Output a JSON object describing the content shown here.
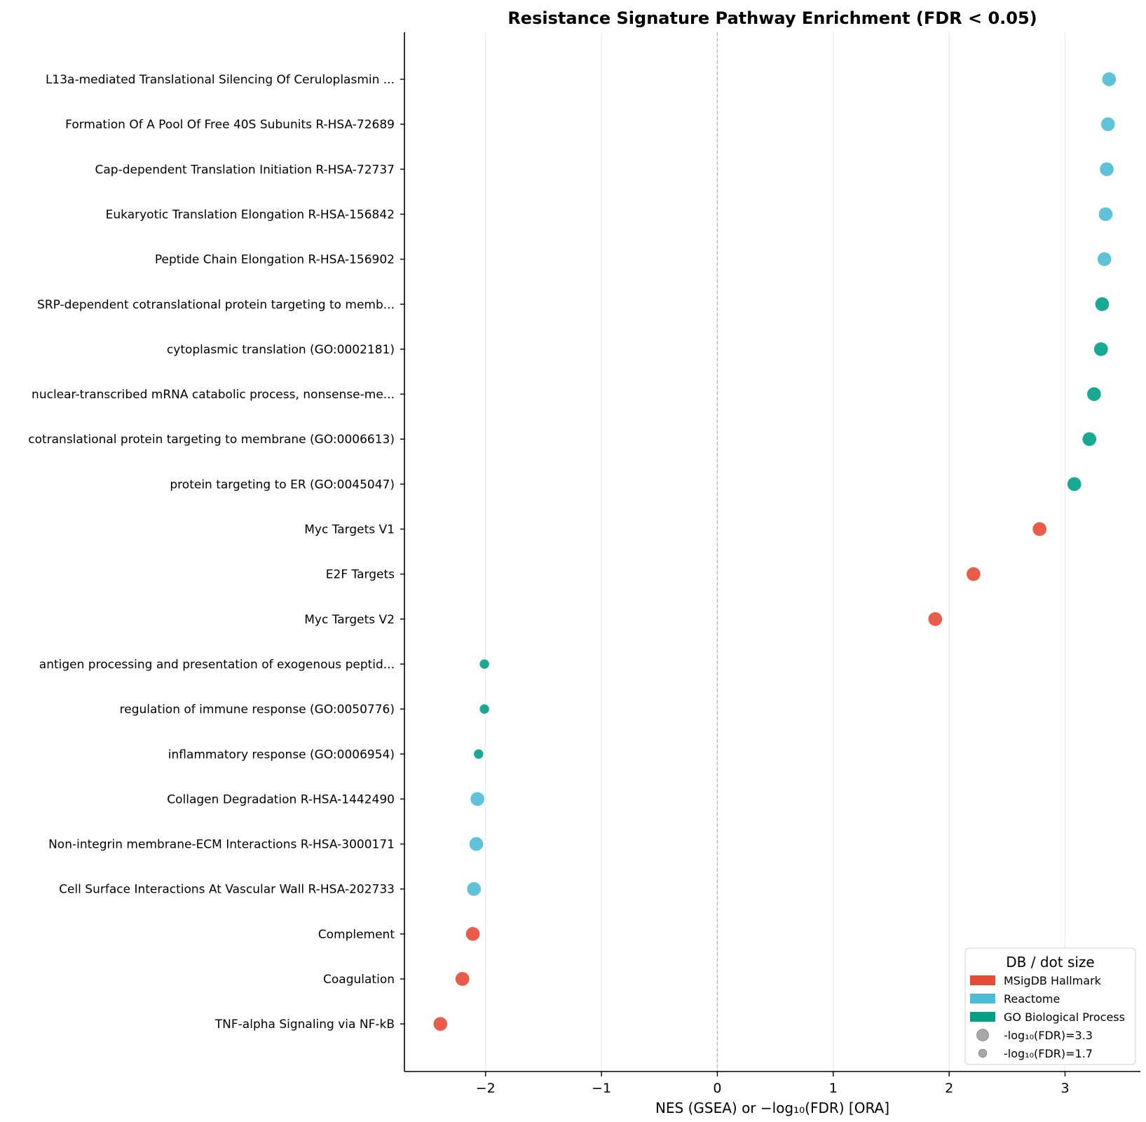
{
  "chart_data": {
    "type": "scatter",
    "title": "Resistance Signature Pathway Enrichment (FDR < 0.05)",
    "xlabel": "NES (GSEA) or −log₁₀(FDR) [ORA]",
    "ylabel": "",
    "xlim": [
      -2.7,
      3.65
    ],
    "xticks": [
      -2,
      -1,
      0,
      1,
      2,
      3
    ],
    "xtick_labels": [
      "−2",
      "−1",
      "0",
      "1",
      "2",
      "3"
    ],
    "grid": "x-only",
    "reference_line_x": 0,
    "colors": {
      "MSigDB Hallmark": "#e64b35",
      "Reactome": "#4dbbd5",
      "GO Biological Process": "#00a087"
    },
    "points": [
      {
        "label": "L13a-mediated Translational Silencing Of Ceruloplasmin ...",
        "x": 3.38,
        "db": "Reactome",
        "size": 3.3
      },
      {
        "label": "Formation Of A Pool Of Free 40S Subunits R-HSA-72689",
        "x": 3.37,
        "db": "Reactome",
        "size": 3.3
      },
      {
        "label": "Cap-dependent Translation Initiation R-HSA-72737",
        "x": 3.36,
        "db": "Reactome",
        "size": 3.3
      },
      {
        "label": "Eukaryotic Translation Elongation R-HSA-156842",
        "x": 3.35,
        "db": "Reactome",
        "size": 3.3
      },
      {
        "label": "Peptide Chain Elongation R-HSA-156902",
        "x": 3.34,
        "db": "Reactome",
        "size": 3.3
      },
      {
        "label": "SRP-dependent cotranslational protein targeting to memb...",
        "x": 3.32,
        "db": "GO Biological Process",
        "size": 3.3
      },
      {
        "label": "cytoplasmic translation (GO:0002181)",
        "x": 3.31,
        "db": "GO Biological Process",
        "size": 3.3
      },
      {
        "label": "nuclear-transcribed mRNA catabolic process, nonsense-me...",
        "x": 3.25,
        "db": "GO Biological Process",
        "size": 3.3
      },
      {
        "label": "cotranslational protein targeting to membrane (GO:0006613)",
        "x": 3.21,
        "db": "GO Biological Process",
        "size": 3.3
      },
      {
        "label": "protein targeting to ER (GO:0045047)",
        "x": 3.08,
        "db": "GO Biological Process",
        "size": 3.3
      },
      {
        "label": "Myc Targets V1",
        "x": 2.78,
        "db": "MSigDB Hallmark",
        "size": 3.3
      },
      {
        "label": "E2F Targets",
        "x": 2.21,
        "db": "MSigDB Hallmark",
        "size": 3.3
      },
      {
        "label": "Myc Targets V2",
        "x": 1.88,
        "db": "MSigDB Hallmark",
        "size": 3.3
      },
      {
        "label": "antigen processing and presentation of exogenous peptid...",
        "x": -2.01,
        "db": "GO Biological Process",
        "size": 1.7
      },
      {
        "label": "regulation of immune response (GO:0050776)",
        "x": -2.01,
        "db": "GO Biological Process",
        "size": 1.7
      },
      {
        "label": "inflammatory response (GO:0006954)",
        "x": -2.06,
        "db": "GO Biological Process",
        "size": 1.7
      },
      {
        "label": "Collagen Degradation R-HSA-1442490",
        "x": -2.07,
        "db": "Reactome",
        "size": 3.3
      },
      {
        "label": "Non-integrin membrane-ECM Interactions R-HSA-3000171",
        "x": -2.08,
        "db": "Reactome",
        "size": 3.3
      },
      {
        "label": "Cell Surface Interactions At Vascular Wall R-HSA-202733",
        "x": -2.1,
        "db": "Reactome",
        "size": 3.3
      },
      {
        "label": "Complement",
        "x": -2.11,
        "db": "MSigDB Hallmark",
        "size": 3.3
      },
      {
        "label": "Coagulation",
        "x": -2.2,
        "db": "MSigDB Hallmark",
        "size": 3.3
      },
      {
        "label": "TNF-alpha Signaling via NF-kB",
        "x": -2.39,
        "db": "MSigDB Hallmark",
        "size": 3.3
      }
    ],
    "legend": {
      "title": "DB / dot size",
      "placement": "lower-right",
      "entries": [
        "MSigDB Hallmark",
        "Reactome",
        "GO Biological Process"
      ],
      "size_entries": [
        {
          "label": "-log₁₀(FDR)=3.3",
          "size": 3.3
        },
        {
          "label": "-log₁₀(FDR)=1.7",
          "size": 1.7
        }
      ]
    }
  }
}
